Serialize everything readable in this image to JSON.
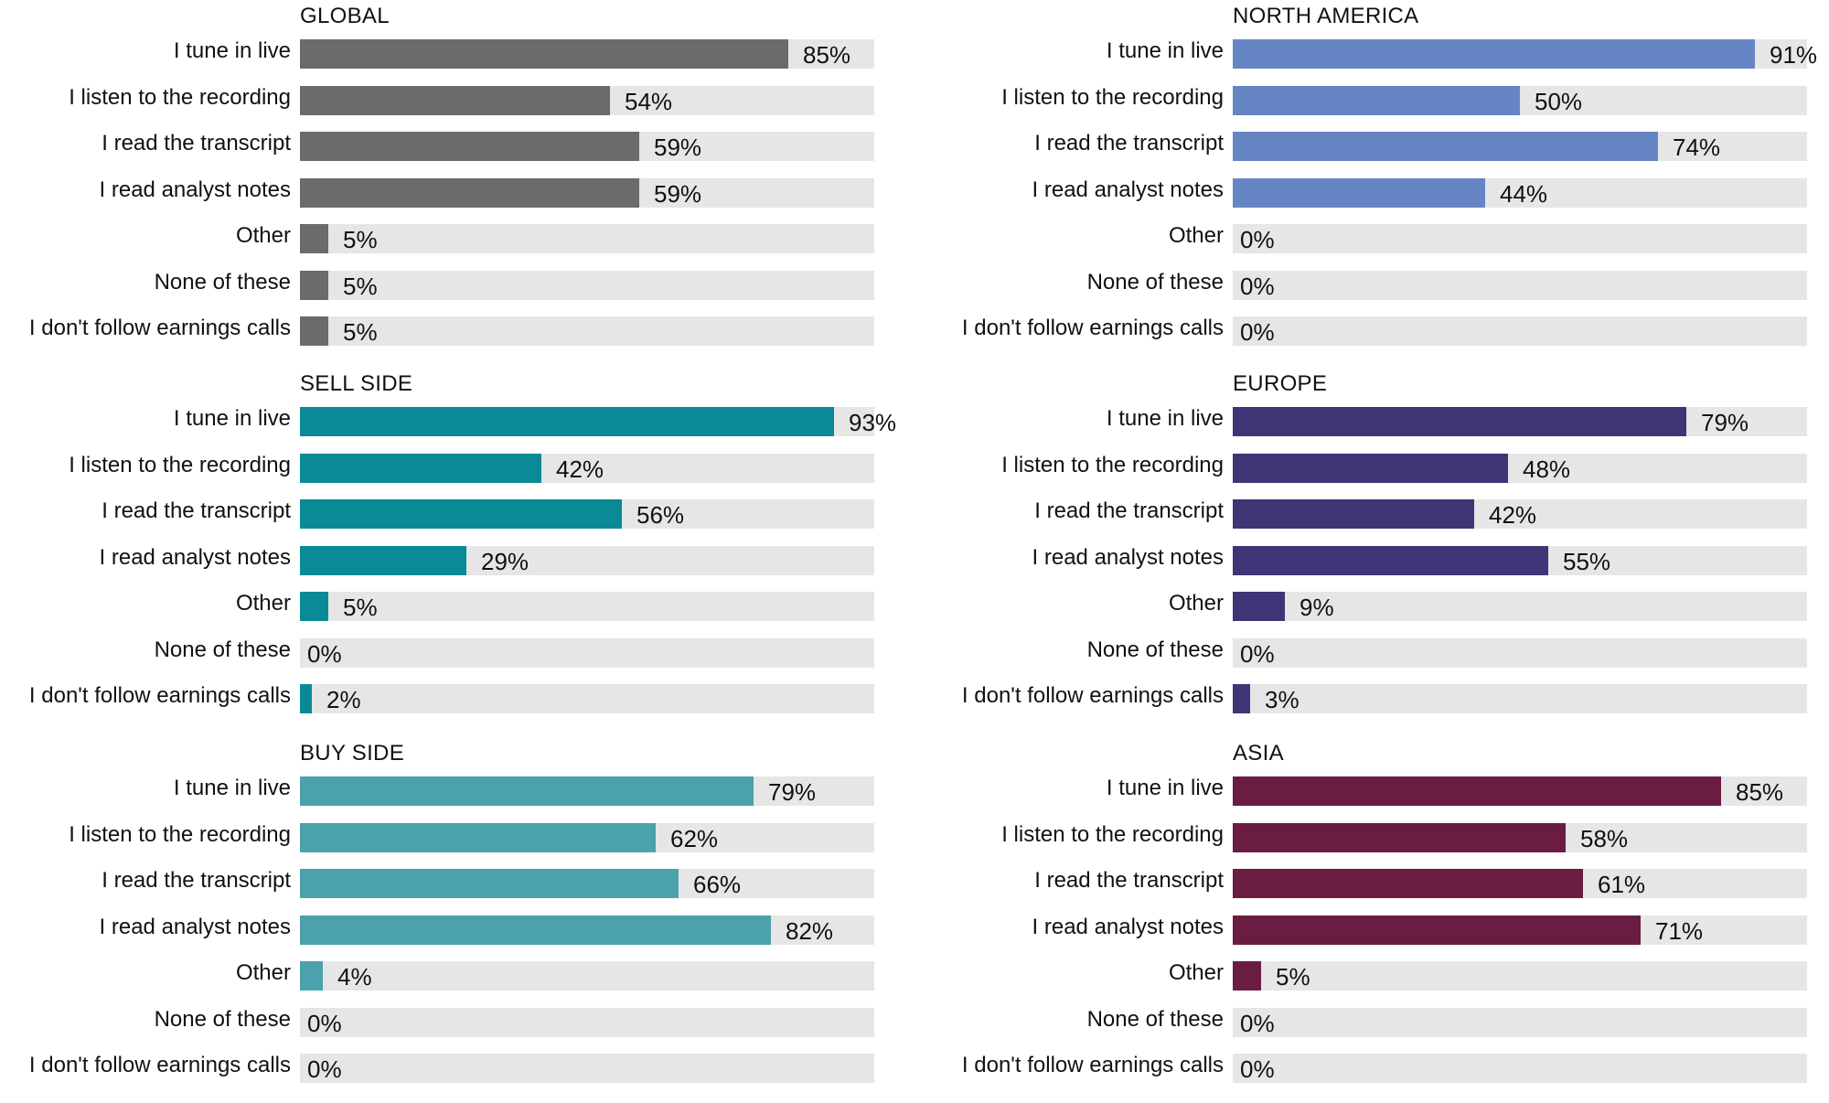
{
  "chart_data": [
    {
      "type": "bar",
      "orientation": "horizontal",
      "title": "GLOBAL",
      "color": "#6b6b6b",
      "categories": [
        "I tune in live",
        "I listen to the recording",
        "I read the transcript",
        "I read analyst notes",
        "Other",
        "None of these",
        "I don't follow earnings calls"
      ],
      "values": [
        85,
        54,
        59,
        59,
        5,
        5,
        5
      ],
      "value_labels": [
        "85%",
        "54%",
        "59%",
        "59%",
        "5%",
        "5%",
        "5%"
      ],
      "xlim": [
        0,
        100
      ]
    },
    {
      "type": "bar",
      "orientation": "horizontal",
      "title": "NORTH AMERICA",
      "color": "#6685c4",
      "categories": [
        "I tune in live",
        "I listen to the recording",
        "I read the transcript",
        "I read analyst notes",
        "Other",
        "None of these",
        "I don't follow earnings calls"
      ],
      "values": [
        91,
        50,
        74,
        44,
        0,
        0,
        0
      ],
      "value_labels": [
        "91%",
        "50%",
        "74%",
        "44%",
        "0%",
        "0%",
        "0%"
      ],
      "xlim": [
        0,
        100
      ]
    },
    {
      "type": "bar",
      "orientation": "horizontal",
      "title": "SELL SIDE",
      "color": "#0a8a96",
      "categories": [
        "I tune in live",
        "I listen to the recording",
        "I read the transcript",
        "I read analyst notes",
        "Other",
        "None of these",
        "I don't follow earnings calls"
      ],
      "values": [
        93,
        42,
        56,
        29,
        5,
        0,
        2
      ],
      "value_labels": [
        "93%",
        "42%",
        "56%",
        "29%",
        "5%",
        "0%",
        "2%"
      ],
      "xlim": [
        0,
        100
      ]
    },
    {
      "type": "bar",
      "orientation": "horizontal",
      "title": "EUROPE",
      "color": "#3f3576",
      "categories": [
        "I tune in live",
        "I listen to the recording",
        "I read the transcript",
        "I read analyst notes",
        "Other",
        "None of these",
        "I don't follow earnings calls"
      ],
      "values": [
        79,
        48,
        42,
        55,
        9,
        0,
        3
      ],
      "value_labels": [
        "79%",
        "48%",
        "42%",
        "55%",
        "9%",
        "0%",
        "3%"
      ],
      "xlim": [
        0,
        100
      ]
    },
    {
      "type": "bar",
      "orientation": "horizontal",
      "title": "BUY SIDE",
      "color": "#4ba1ac",
      "categories": [
        "I tune in live",
        "I listen to the recording",
        "I read the transcript",
        "I read analyst notes",
        "Other",
        "None of these",
        "I don't follow earnings calls"
      ],
      "values": [
        79,
        62,
        66,
        82,
        4,
        0,
        0
      ],
      "value_labels": [
        "79%",
        "62%",
        "66%",
        "82%",
        "4%",
        "0%",
        "0%"
      ],
      "xlim": [
        0,
        100
      ]
    },
    {
      "type": "bar",
      "orientation": "horizontal",
      "title": "ASIA",
      "color": "#6a1c41",
      "categories": [
        "I tune in live",
        "I listen to the recording",
        "I read the transcript",
        "I read analyst notes",
        "Other",
        "None of these",
        "I don't follow earnings calls"
      ],
      "values": [
        85,
        58,
        61,
        71,
        5,
        0,
        0
      ],
      "value_labels": [
        "85%",
        "58%",
        "61%",
        "71%",
        "5%",
        "0%",
        "0%"
      ],
      "xlim": [
        0,
        100
      ]
    }
  ]
}
